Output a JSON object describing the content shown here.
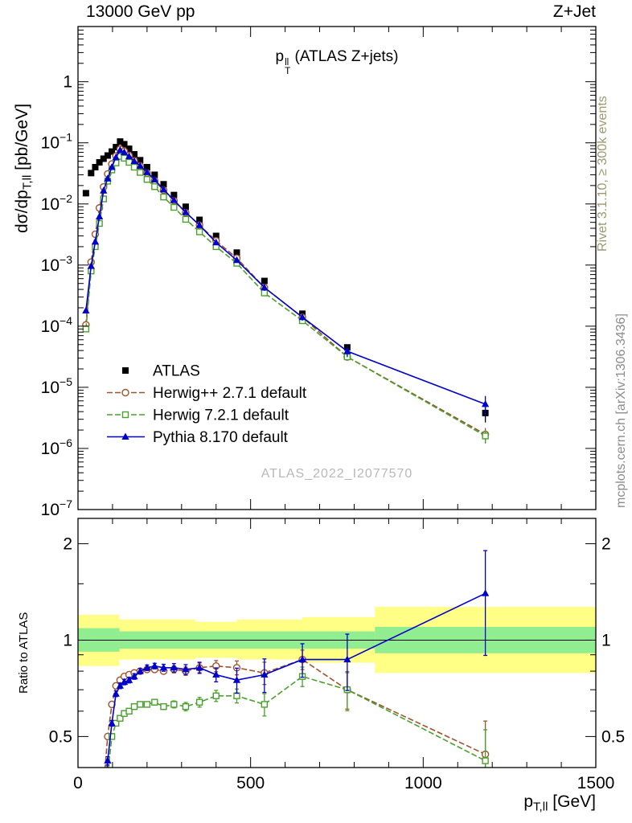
{
  "header": {
    "left": "13000 GeV pp",
    "right": "Z+Jet"
  },
  "side_notes": {
    "rivet": "Rivet 3.1.10, ≥ 300k events",
    "mcplots": "mcplots.cern.ch [arXiv:1306.3436]"
  },
  "watermark": "ATLAS_2022_I2077570",
  "chart_data": {
    "type": "line",
    "title": {
      "pre": "p",
      "sup": "ll",
      "sub": "T",
      "post": " (ATLAS Z+jets)"
    },
    "xlabel": {
      "pre": "p",
      "sub": "T,ll",
      "post": " [GeV]"
    },
    "ylabel_main": {
      "pre": "dσ/dp",
      "sub": "T,ll",
      "post": " [pb/GeV]"
    },
    "ylabel_ratio": "Ratio to ATLAS",
    "x_range": [
      0,
      1500
    ],
    "x_major_ticks": [
      0,
      500,
      1000,
      1500
    ],
    "x_minor_step": 100,
    "main_y_scale": "log",
    "main_y_range": [
      1e-07,
      8
    ],
    "ratio_y_scale": "log",
    "ratio_y_range": [
      0.4,
      2.4
    ],
    "ratio_major_ticks": [
      0.5,
      1,
      2
    ],
    "ratio_minor_ticks": [
      0.6,
      0.7,
      0.8,
      0.9,
      1.5
    ],
    "ratio_reference_line": 1,
    "legend_position": "inside-middle-left",
    "grid": false,
    "ratio_bands": [
      {
        "name": "data-total-uncertainty",
        "color": "#ffff85",
        "segments": [
          [
            0,
            120,
            0.83,
            1.2
          ],
          [
            120,
            340,
            0.87,
            1.16
          ],
          [
            340,
            460,
            0.88,
            1.14
          ],
          [
            460,
            650,
            0.87,
            1.16
          ],
          [
            650,
            860,
            0.85,
            1.18
          ],
          [
            860,
            1500,
            0.79,
            1.27
          ]
        ]
      },
      {
        "name": "data-stat-uncertainty",
        "color": "#90ee90",
        "segments": [
          [
            0,
            120,
            0.92,
            1.09
          ],
          [
            120,
            860,
            0.94,
            1.065
          ],
          [
            860,
            1500,
            0.91,
            1.1
          ]
        ]
      }
    ],
    "series": [
      {
        "label": "ATLAS",
        "color": "#000000",
        "marker": "square",
        "line": "none",
        "x": [
          23,
          38,
          50,
          62,
          74,
          86,
          98,
          110,
          122,
          134,
          148,
          163,
          180,
          200,
          222,
          248,
          278,
          312,
          352,
          400,
          460,
          540,
          650,
          780,
          1180
        ],
        "y": [
          0.015,
          0.032,
          0.04,
          0.048,
          0.055,
          0.062,
          0.072,
          0.085,
          0.105,
          0.095,
          0.08,
          0.065,
          0.052,
          0.04,
          0.03,
          0.021,
          0.014,
          0.009,
          0.0055,
          0.003,
          0.0016,
          0.00055,
          0.00016,
          4.5e-05,
          3.8e-06
        ],
        "rel_err": [
          0.02,
          0.02,
          0.02,
          0.02,
          0.02,
          0.02,
          0.02,
          0.02,
          0.02,
          0.02,
          0.02,
          0.02,
          0.02,
          0.02,
          0.02,
          0.02,
          0.02,
          0.03,
          0.03,
          0.04,
          0.05,
          0.07,
          0.09,
          0.12,
          0.3
        ]
      },
      {
        "label": "Herwig++ 2.7.1 default",
        "color": "#a0522d",
        "marker": "ocircle",
        "line": "dashed",
        "x": [
          23,
          38,
          50,
          62,
          74,
          86,
          98,
          110,
          122,
          134,
          148,
          163,
          180,
          200,
          222,
          248,
          278,
          312,
          352,
          400,
          460,
          540,
          650,
          780,
          1180
        ],
        "y": [
          0.000105,
          0.00112,
          0.0032,
          0.0086,
          0.019,
          0.031,
          0.045,
          0.061,
          0.079,
          0.073,
          0.062,
          0.051,
          0.042,
          0.032,
          0.024,
          0.0168,
          0.0113,
          0.0072,
          0.0045,
          0.0025,
          0.0013,
          0.00043,
          0.00014,
          3.15e-05,
          1.7e-06
        ],
        "ratio": [
          null,
          null,
          null,
          null,
          0.35,
          0.5,
          0.63,
          0.72,
          0.75,
          0.77,
          0.78,
          0.79,
          0.8,
          0.81,
          0.81,
          0.8,
          0.81,
          0.8,
          0.82,
          0.83,
          0.82,
          0.79,
          0.87,
          0.7,
          0.44
        ],
        "rel_err": [
          0,
          0,
          0,
          0,
          0.02,
          0.02,
          0.02,
          0.015,
          0.015,
          0.015,
          0.015,
          0.015,
          0.015,
          0.015,
          0.02,
          0.02,
          0.025,
          0.03,
          0.035,
          0.04,
          0.05,
          0.08,
          0.07,
          0.13,
          0.27
        ]
      },
      {
        "label": "Herwig 7.2.1 default",
        "color": "#4aa02c",
        "marker": "osquare",
        "line": "dashed",
        "x": [
          23,
          38,
          50,
          62,
          74,
          86,
          98,
          110,
          122,
          134,
          148,
          163,
          180,
          200,
          222,
          248,
          278,
          312,
          352,
          400,
          460,
          540,
          650,
          780,
          1180
        ],
        "y": [
          9e-05,
          0.0008,
          0.002,
          0.0048,
          0.0121,
          0.0236,
          0.036,
          0.047,
          0.06,
          0.056,
          0.048,
          0.04,
          0.0328,
          0.0252,
          0.0192,
          0.013,
          0.0088,
          0.0056,
          0.0035,
          0.002,
          0.00107,
          0.00035,
          0.000123,
          3.15e-05,
          1.6e-06
        ],
        "ratio": [
          null,
          null,
          null,
          null,
          0.22,
          0.38,
          0.5,
          0.55,
          0.57,
          0.59,
          0.6,
          0.62,
          0.63,
          0.63,
          0.64,
          0.62,
          0.63,
          0.62,
          0.64,
          0.67,
          0.67,
          0.63,
          0.77,
          0.7,
          0.42
        ],
        "rel_err": [
          0,
          0,
          0,
          0,
          0.02,
          0.02,
          0.02,
          0.015,
          0.015,
          0.015,
          0.015,
          0.015,
          0.015,
          0.015,
          0.02,
          0.02,
          0.025,
          0.03,
          0.035,
          0.04,
          0.05,
          0.08,
          0.07,
          0.14,
          0.25
        ]
      },
      {
        "label": "Pythia 8.170 default",
        "color": "#0000cc",
        "marker": "triangle",
        "line": "solid",
        "x": [
          23,
          38,
          50,
          62,
          74,
          86,
          98,
          110,
          122,
          134,
          148,
          163,
          180,
          200,
          222,
          248,
          278,
          312,
          352,
          400,
          460,
          540,
          650,
          780,
          1180
        ],
        "y": [
          0.00018,
          0.00096,
          0.0024,
          0.0062,
          0.0165,
          0.026,
          0.04,
          0.058,
          0.076,
          0.07,
          0.06,
          0.05,
          0.042,
          0.033,
          0.025,
          0.0172,
          0.0115,
          0.0073,
          0.0045,
          0.00234,
          0.0012,
          0.00043,
          0.00014,
          3.9e-05,
          5.3e-06
        ],
        "ratio": [
          null,
          null,
          null,
          null,
          0.3,
          0.42,
          0.55,
          0.68,
          0.72,
          0.74,
          0.75,
          0.77,
          0.8,
          0.82,
          0.83,
          0.82,
          0.82,
          0.81,
          0.82,
          0.78,
          0.75,
          0.78,
          0.87,
          0.87,
          1.4
        ],
        "rel_err": [
          0,
          0,
          0,
          0,
          0.02,
          0.03,
          0.02,
          0.02,
          0.02,
          0.02,
          0.02,
          0.02,
          0.02,
          0.02,
          0.02,
          0.025,
          0.03,
          0.035,
          0.04,
          0.05,
          0.09,
          0.12,
          0.12,
          0.2,
          0.36
        ]
      }
    ]
  }
}
